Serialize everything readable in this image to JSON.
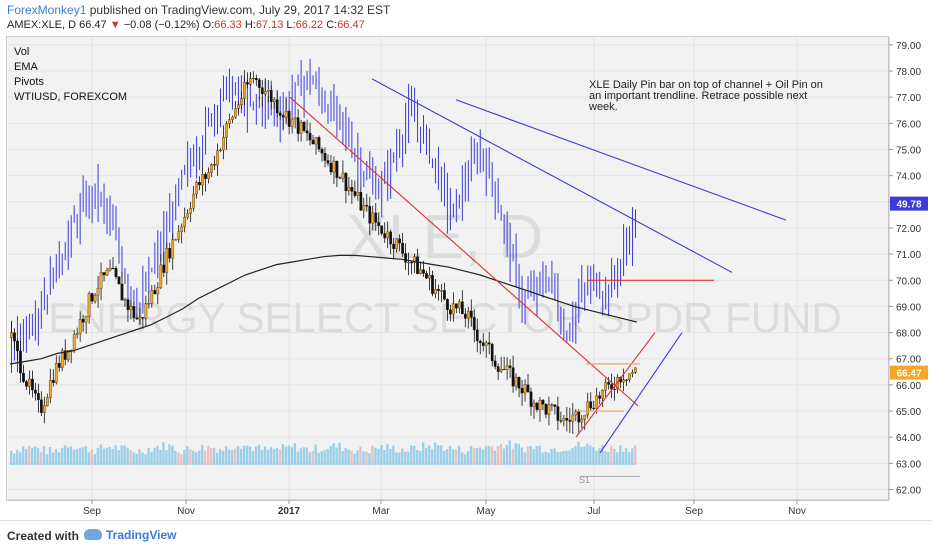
{
  "header": {
    "author": "ForexMonkey1",
    "published": "published on TradingView.com, July 29, 2017 14:32 EST",
    "symbol_line": "AMEX:XLE, D",
    "last": "66.47",
    "change_arrow": "▼",
    "change": "−0.08 (−0.12%)",
    "o_label": "O:",
    "o_value": "66.33",
    "h_label": "H:",
    "h_value": "67.13",
    "l_label": "L:",
    "l_value": "66.22",
    "c_label": "C:",
    "c_value": "66.47"
  },
  "indicators": [
    "Vol",
    "EMA",
    "Pivots",
    "WTIUSD, FOREXCOM"
  ],
  "annotation": "XLE Daily Pin bar on top of channel + Oil Pin on an important trendline. Retrace possible next week.",
  "watermark": {
    "ticker": "XLE, D",
    "name": "ENERGY SELECT SECTOR SPDR FUND"
  },
  "footer": {
    "created_with": "Created with",
    "brand": "TradingView"
  },
  "colors": {
    "candle_up": "#f5a623",
    "candle_down": "#111111",
    "oil_bars": "#3b3bdb",
    "trendline_red": "#e03030",
    "trendline_blue": "#3b3bdb",
    "ema": "#222222",
    "price_tag_oil": "#3b3bdb",
    "price_tag_xle": "#f5a623",
    "volume": "#86c5e6"
  },
  "chart_data": {
    "type": "candlestick",
    "x_tick_labels": [
      "Sep",
      "Nov",
      "2017",
      "Mar",
      "May",
      "Jul",
      "Sep",
      "Nov"
    ],
    "y_ticks": [
      62.0,
      63.0,
      64.0,
      65.0,
      66.0,
      67.0,
      68.0,
      69.0,
      70.0,
      71.0,
      72.0,
      73.0,
      74.0,
      75.0,
      76.0,
      77.0,
      78.0,
      79.0
    ],
    "ylim": [
      61.6,
      79.3
    ],
    "last_xle": 66.47,
    "last_oil": 49.78,
    "pivot_label": "S1",
    "xle_series": [
      67.8,
      66.2,
      65.0,
      66.5,
      67.4,
      68.6,
      69.8,
      70.3,
      69.2,
      68.4,
      69.6,
      71.0,
      72.2,
      73.5,
      74.2,
      75.6,
      76.8,
      77.8,
      77.2,
      76.5,
      76.0,
      75.4,
      74.8,
      74.2,
      73.4,
      72.6,
      72.0,
      71.5,
      70.8,
      70.3,
      69.6,
      69.0,
      68.7,
      67.8,
      67.0,
      66.4,
      65.9,
      65.3,
      65.0,
      64.6,
      64.9,
      65.4,
      65.8,
      66.4,
      66.5
    ],
    "oil_series_on_xle_scale": [
      67.3,
      68.2,
      69.0,
      70.4,
      71.6,
      72.8,
      73.4,
      72.1,
      70.2,
      69.0,
      70.6,
      72.0,
      73.8,
      75.0,
      76.2,
      77.4,
      77.0,
      76.6,
      76.8,
      76.4,
      77.2,
      77.8,
      76.8,
      76.2,
      75.2,
      74.0,
      73.4,
      74.8,
      76.4,
      75.6,
      74.2,
      72.4,
      73.8,
      75.0,
      73.6,
      71.4,
      69.2,
      69.6,
      70.2,
      67.8,
      69.3,
      70.0,
      69.5,
      70.8,
      72.4
    ],
    "ema_series": [
      66.8,
      66.9,
      67.0,
      67.2,
      67.3,
      67.5,
      67.7,
      67.9,
      68.1,
      68.3,
      68.6,
      68.9,
      69.3,
      69.6,
      69.9,
      70.2,
      70.4,
      70.6,
      70.7,
      70.8,
      70.9,
      70.95,
      70.95,
      70.9,
      70.85,
      70.8,
      70.7,
      70.6,
      70.5,
      70.35,
      70.2,
      70.0,
      69.8,
      69.6,
      69.4,
      69.2,
      69.0,
      68.85,
      68.7,
      68.55,
      68.4
    ],
    "volume_series": [
      0.35,
      0.5,
      0.42,
      0.3,
      0.6,
      0.45,
      0.38,
      0.52,
      0.4,
      0.33,
      0.47,
      0.55,
      0.36,
      0.44,
      0.5,
      0.4,
      0.62,
      0.48,
      0.37,
      0.42,
      0.5,
      0.39,
      0.46,
      0.53,
      0.41,
      0.35,
      0.49,
      0.44,
      0.38,
      0.5,
      0.56,
      0.43,
      0.37,
      0.48,
      0.52,
      0.6,
      0.45,
      0.5,
      0.42,
      0.47,
      0.55,
      0.5,
      0.44,
      0.48,
      0.46
    ]
  }
}
